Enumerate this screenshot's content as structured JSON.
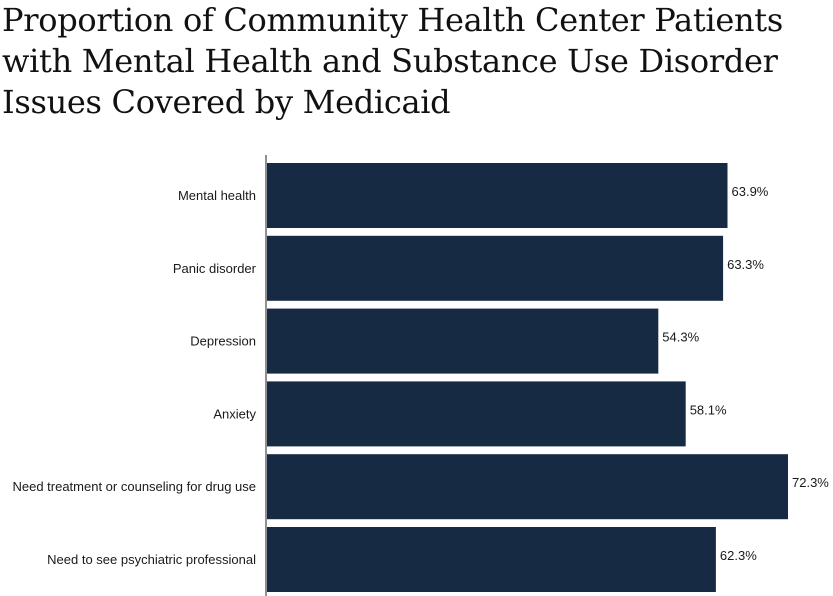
{
  "chart_data": {
    "type": "bar",
    "orientation": "horizontal",
    "title": "Proportion of Community Health Center Patients with Mental Health and Substance Use Disorder Issues Covered by Medicaid",
    "categories": [
      "Mental health",
      "Panic disorder",
      "Depression",
      "Anxiety",
      "Need treatment or counseling for drug use",
      "Need to see psychiatric professional"
    ],
    "values": [
      63.9,
      63.3,
      54.3,
      58.1,
      72.3,
      62.3
    ],
    "value_labels": [
      "63.9%",
      "63.3%",
      "54.3%",
      "58.1%",
      "72.3%",
      "62.3%"
    ],
    "unit": "%",
    "xlim": [
      0,
      72.3
    ],
    "grid": false,
    "legend": "none",
    "bar_color": "#172a43"
  }
}
